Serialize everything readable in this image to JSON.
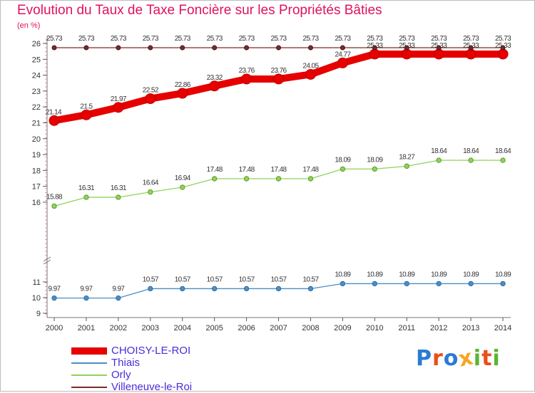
{
  "title": "Evolution du Taux de Taxe Foncière sur les Propriétés Bâties",
  "unit": "(en %)",
  "brand": {
    "logo_text": "Proxiti",
    "letter_colors": [
      "#2a7bd4",
      "#e94f1c",
      "#2a7bd4",
      "#f5a623",
      "#5bb531",
      "#e94f1c",
      "#5bb531"
    ]
  },
  "chart_data": {
    "type": "line",
    "title": "Evolution du Taux de Taxe Foncière sur les Propriétés Bâties",
    "ylabel": "(en %)",
    "xlabel": "",
    "x": [
      "2000",
      "2001",
      "2002",
      "2003",
      "2004",
      "2005",
      "2006",
      "2007",
      "2008",
      "2009",
      "2010",
      "2011",
      "2012",
      "2013",
      "2014"
    ],
    "yticks": [
      9,
      10,
      11,
      16,
      17,
      18,
      19,
      20,
      21,
      22,
      23,
      24,
      25,
      26
    ],
    "axis_break": {
      "low": 11,
      "high": 15
    },
    "grid": false,
    "legend_position": "bottom-left",
    "series": [
      {
        "name": "CHOISY-LE-ROI",
        "color": "#e60000",
        "values": [
          21.14,
          21.5,
          21.97,
          22.52,
          22.86,
          23.32,
          23.76,
          23.76,
          24.05,
          24.77,
          25.33,
          25.33,
          25.33,
          25.33,
          25.33
        ],
        "labels": [
          "21.14",
          "21.5",
          "21.97",
          "22.52",
          "22.86",
          "23.32",
          "23.76",
          "23.76",
          "24.05",
          "24.77",
          "25.33",
          "25.33",
          "25.33",
          "25.33",
          "25.33"
        ]
      },
      {
        "name": "Thiais",
        "color": "#4b8ec4",
        "values": [
          9.97,
          9.97,
          9.97,
          10.57,
          10.57,
          10.57,
          10.57,
          10.57,
          10.57,
          10.89,
          10.89,
          10.89,
          10.89,
          10.89,
          10.89
        ],
        "labels": [
          "9.97",
          "9.97",
          "9.97",
          "10.57",
          "10.57",
          "10.57",
          "10.57",
          "10.57",
          "10.57",
          "10.89",
          "10.89",
          "10.89",
          "10.89",
          "10.89",
          "10.89"
        ]
      },
      {
        "name": "Orly",
        "color": "#8fd35a",
        "values": [
          15.88,
          16.31,
          16.31,
          16.64,
          16.94,
          17.48,
          17.48,
          17.48,
          17.48,
          18.09,
          18.09,
          18.27,
          18.64,
          18.64,
          18.64
        ],
        "labels": [
          "15.88",
          "16.31",
          "16.31",
          "16.64",
          "16.94",
          "17.48",
          "17.48",
          "17.48",
          "17.48",
          "18.09",
          "18.09",
          "18.27",
          "18.64",
          "18.64",
          "18.64"
        ]
      },
      {
        "name": "Villeneuve-le-Roi",
        "color": "#7b2a2a",
        "values": [
          25.73,
          25.73,
          25.73,
          25.73,
          25.73,
          25.73,
          25.73,
          25.73,
          25.73,
          25.73,
          25.73,
          25.73,
          25.73,
          25.73,
          25.73
        ],
        "labels": [
          "25.73",
          "25.73",
          "25.73",
          "25.73",
          "25.73",
          "25.73",
          "25.73",
          "25.73",
          "25.73",
          "25.73",
          "25.73",
          "25.73",
          "25.73",
          "25.73",
          "25.73"
        ]
      }
    ]
  }
}
